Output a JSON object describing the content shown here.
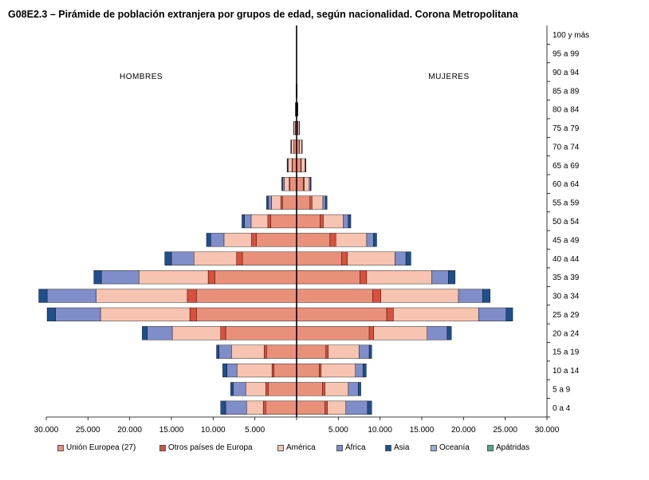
{
  "title": "G08E2.3 – Pirámide de población extranjera por grupos de edad, según nacionalidad. Corona Metropolitana",
  "chart_data": {
    "type": "bar",
    "orientation": "horizontal-pyramid",
    "side_labels": {
      "left": "HOMBRES",
      "right": "MUJERES"
    },
    "categories": [
      "0 a 4",
      "5 a 9",
      "10 a 14",
      "15 a 19",
      "20 a 24",
      "25 a 29",
      "30 a 34",
      "35 a 39",
      "40 a 44",
      "45 a 49",
      "50 a 54",
      "55 a 59",
      "60 a 64",
      "65 a 69",
      "70 a 74",
      "75 a 79",
      "80 a 84",
      "85 a 89",
      "90 a 94",
      "95 a 99",
      "100 y más"
    ],
    "x_ticks": [
      "30.000",
      "25.000",
      "20.000",
      "15.000",
      "10.000",
      "5.000",
      "",
      "5.000",
      "10.000",
      "15.000",
      "20.000",
      "25.000",
      "30.000"
    ],
    "xlim": [
      -30000,
      30000
    ],
    "series": [
      {
        "name": "Unión Europea (27)",
        "color": "#e8907a",
        "hombres": [
          3700,
          3400,
          2700,
          3600,
          8500,
          12000,
          12000,
          9800,
          6500,
          4800,
          3100,
          1700,
          800,
          500,
          300,
          150,
          60,
          30,
          10,
          5,
          2
        ],
        "mujeres": [
          3400,
          3100,
          2700,
          3500,
          8700,
          10800,
          9100,
          7600,
          5400,
          4000,
          2800,
          1600,
          800,
          500,
          300,
          150,
          70,
          35,
          12,
          5,
          2
        ]
      },
      {
        "name": "Otros países de Europa",
        "color": "#d9503c",
        "hombres": [
          300,
          300,
          250,
          300,
          600,
          800,
          1100,
          800,
          700,
          600,
          350,
          200,
          80,
          40,
          20,
          10,
          5,
          2,
          1,
          0,
          0
        ],
        "mujeres": [
          300,
          300,
          250,
          300,
          550,
          800,
          1000,
          800,
          700,
          700,
          400,
          250,
          120,
          60,
          30,
          15,
          8,
          4,
          1,
          0,
          0
        ]
      },
      {
        "name": "América",
        "color": "#f6c4b0",
        "hombres": [
          2000,
          2400,
          4200,
          3900,
          5800,
          10700,
          10900,
          8300,
          5100,
          3300,
          2000,
          1100,
          600,
          450,
          300,
          150,
          60,
          30,
          10,
          5,
          2
        ],
        "mujeres": [
          2200,
          2800,
          4100,
          3700,
          6400,
          10200,
          9300,
          7800,
          5700,
          3700,
          2400,
          1300,
          600,
          450,
          300,
          150,
          60,
          30,
          10,
          5,
          2
        ]
      },
      {
        "name": "África",
        "color": "#7f8ec8",
        "hombres": [
          2500,
          1500,
          1200,
          1500,
          3000,
          5400,
          5900,
          4500,
          2700,
          1600,
          800,
          400,
          200,
          100,
          50,
          20,
          10,
          5,
          2,
          0,
          0
        ],
        "mujeres": [
          2600,
          1200,
          900,
          1200,
          2400,
          3300,
          2900,
          2000,
          1300,
          800,
          600,
          300,
          120,
          60,
          30,
          15,
          5,
          2,
          1,
          0,
          0
        ]
      },
      {
        "name": "Asia",
        "color": "#20508c",
        "hombres": [
          600,
          300,
          500,
          300,
          600,
          1000,
          1000,
          900,
          800,
          500,
          300,
          200,
          100,
          50,
          20,
          10,
          5,
          2,
          1,
          0,
          0
        ],
        "mujeres": [
          500,
          300,
          400,
          300,
          500,
          800,
          900,
          800,
          600,
          400,
          300,
          200,
          100,
          50,
          20,
          10,
          5,
          2,
          1,
          0,
          0
        ]
      },
      {
        "name": "Oceanía",
        "color": "#9ab0dc",
        "hombres": [
          0,
          0,
          0,
          0,
          0,
          0,
          0,
          0,
          0,
          0,
          0,
          0,
          0,
          0,
          0,
          0,
          0,
          0,
          0,
          0,
          0
        ],
        "mujeres": [
          0,
          0,
          0,
          0,
          0,
          0,
          0,
          0,
          0,
          0,
          0,
          0,
          0,
          0,
          0,
          0,
          0,
          0,
          0,
          0,
          0
        ]
      },
      {
        "name": "Apátridas",
        "color": "#4ca886",
        "hombres": [
          0,
          0,
          0,
          0,
          0,
          0,
          0,
          0,
          0,
          0,
          0,
          0,
          0,
          0,
          0,
          0,
          0,
          0,
          0,
          0,
          0
        ],
        "mujeres": [
          0,
          0,
          0,
          0,
          0,
          0,
          0,
          0,
          0,
          0,
          0,
          0,
          0,
          0,
          0,
          0,
          0,
          0,
          0,
          0,
          0
        ]
      }
    ],
    "grid": false,
    "legend": "bottom"
  }
}
